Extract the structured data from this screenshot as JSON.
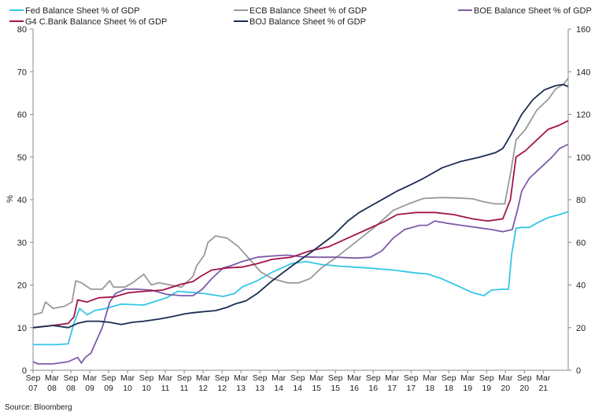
{
  "chart_data": {
    "type": "line",
    "title": "",
    "ylabel": "%",
    "xlabel": "",
    "source": "Source: Bloomberg",
    "ylim": [
      0,
      80
    ],
    "y2lim": [
      0,
      160
    ],
    "yticks": [
      "0",
      "10",
      "20",
      "30",
      "40",
      "50",
      "60",
      "70",
      "80"
    ],
    "y2ticks": [
      "0",
      "20",
      "40",
      "60",
      "80",
      "100",
      "120",
      "140",
      "160"
    ],
    "xlim": [
      2007.67,
      2021.83
    ],
    "xticks": [
      {
        "month": "Sep",
        "year": "07",
        "t": 2007.67
      },
      {
        "month": "Mar",
        "year": "08",
        "t": 2008.17
      },
      {
        "month": "Sep",
        "year": "08",
        "t": 2008.67
      },
      {
        "month": "Mar",
        "year": "09",
        "t": 2009.17
      },
      {
        "month": "Sep",
        "year": "09",
        "t": 2009.67
      },
      {
        "month": "Mar",
        "year": "10",
        "t": 2010.17
      },
      {
        "month": "Sep",
        "year": "10",
        "t": 2010.67
      },
      {
        "month": "Mar",
        "year": "11",
        "t": 2011.17
      },
      {
        "month": "Sep",
        "year": "11",
        "t": 2011.67
      },
      {
        "month": "Mar",
        "year": "12",
        "t": 2012.17
      },
      {
        "month": "Sep",
        "year": "12",
        "t": 2012.67
      },
      {
        "month": "Mar",
        "year": "13",
        "t": 2013.17
      },
      {
        "month": "Sep",
        "year": "13",
        "t": 2013.67
      },
      {
        "month": "Mar",
        "year": "14",
        "t": 2014.17
      },
      {
        "month": "Sep",
        "year": "14",
        "t": 2014.67
      },
      {
        "month": "Mar",
        "year": "15",
        "t": 2015.17
      },
      {
        "month": "Sep",
        "year": "15",
        "t": 2015.67
      },
      {
        "month": "Mar",
        "year": "16",
        "t": 2016.17
      },
      {
        "month": "Sep",
        "year": "16",
        "t": 2016.67
      },
      {
        "month": "Mar",
        "year": "17",
        "t": 2017.17
      },
      {
        "month": "Sep",
        "year": "17",
        "t": 2017.67
      },
      {
        "month": "Mar",
        "year": "18",
        "t": 2018.17
      },
      {
        "month": "Sep",
        "year": "18",
        "t": 2018.67
      },
      {
        "month": "Mar",
        "year": "19",
        "t": 2019.17
      },
      {
        "month": "Sep",
        "year": "19",
        "t": 2019.67
      },
      {
        "month": "Mar",
        "year": "20",
        "t": 2020.17
      },
      {
        "month": "Sep",
        "year": "20",
        "t": 2020.67
      },
      {
        "month": "Mar",
        "year": "21",
        "t": 2021.17
      }
    ],
    "legend_position": "top",
    "series": [
      {
        "key": "fed",
        "name": "Fed Balance Sheet % of GDP",
        "color": "#33c6e6",
        "points": [
          [
            2007.67,
            6
          ],
          [
            2008.3,
            6
          ],
          [
            2008.6,
            6.2
          ],
          [
            2008.75,
            11
          ],
          [
            2008.9,
            14.5
          ],
          [
            2009.1,
            13
          ],
          [
            2009.3,
            14
          ],
          [
            2009.6,
            14.5
          ],
          [
            2010,
            15.5
          ],
          [
            2010.6,
            15.3
          ],
          [
            2011.2,
            17
          ],
          [
            2011.5,
            18.5
          ],
          [
            2011.8,
            18.3
          ],
          [
            2012.2,
            18
          ],
          [
            2012.7,
            17.3
          ],
          [
            2013,
            18
          ],
          [
            2013.2,
            19.5
          ],
          [
            2013.6,
            21
          ],
          [
            2014,
            23
          ],
          [
            2014.5,
            25
          ],
          [
            2014.9,
            25.5
          ],
          [
            2015.3,
            24.8
          ],
          [
            2015.8,
            24.4
          ],
          [
            2016.5,
            24
          ],
          [
            2017.2,
            23.5
          ],
          [
            2017.8,
            22.8
          ],
          [
            2018.1,
            22.6
          ],
          [
            2018.5,
            21.4
          ],
          [
            2018.9,
            19.8
          ],
          [
            2019.3,
            18.2
          ],
          [
            2019.6,
            17.5
          ],
          [
            2019.8,
            18.8
          ],
          [
            2020.1,
            19
          ],
          [
            2020.25,
            19
          ],
          [
            2020.33,
            27
          ],
          [
            2020.45,
            33.3
          ],
          [
            2020.6,
            33.5
          ],
          [
            2020.8,
            33.5
          ],
          [
            2021,
            34.5
          ],
          [
            2021.3,
            35.8
          ],
          [
            2021.6,
            36.5
          ],
          [
            2021.83,
            37.2
          ]
        ]
      },
      {
        "key": "ecb",
        "name": "ECB Balance Sheet % of GDP",
        "color": "#999999",
        "points": [
          [
            2007.67,
            13
          ],
          [
            2007.9,
            13.5
          ],
          [
            2008,
            16
          ],
          [
            2008.2,
            14.5
          ],
          [
            2008.5,
            15
          ],
          [
            2008.7,
            16
          ],
          [
            2008.8,
            21
          ],
          [
            2008.95,
            20.5
          ],
          [
            2009.2,
            19
          ],
          [
            2009.5,
            19
          ],
          [
            2009.7,
            21
          ],
          [
            2009.8,
            19.5
          ],
          [
            2010.1,
            19.5
          ],
          [
            2010.3,
            20.5
          ],
          [
            2010.6,
            22.5
          ],
          [
            2010.8,
            20
          ],
          [
            2011,
            20.5
          ],
          [
            2011.3,
            20
          ],
          [
            2011.6,
            19.5
          ],
          [
            2011.9,
            22
          ],
          [
            2012,
            24.5
          ],
          [
            2012.2,
            27
          ],
          [
            2012.3,
            30
          ],
          [
            2012.5,
            31.5
          ],
          [
            2012.8,
            31
          ],
          [
            2013.1,
            29
          ],
          [
            2013.4,
            26
          ],
          [
            2013.7,
            23
          ],
          [
            2014,
            21.5
          ],
          [
            2014.4,
            20.5
          ],
          [
            2014.7,
            20.5
          ],
          [
            2015,
            21.5
          ],
          [
            2015.3,
            24
          ],
          [
            2015.7,
            26.5
          ],
          [
            2016.2,
            30
          ],
          [
            2016.7,
            33.5
          ],
          [
            2017.2,
            37.5
          ],
          [
            2017.6,
            39
          ],
          [
            2018,
            40.3
          ],
          [
            2018.5,
            40.5
          ],
          [
            2018.9,
            40.4
          ],
          [
            2019.3,
            40.2
          ],
          [
            2019.6,
            39.5
          ],
          [
            2019.9,
            39
          ],
          [
            2020.15,
            39
          ],
          [
            2020.3,
            46
          ],
          [
            2020.45,
            54
          ],
          [
            2020.7,
            56.5
          ],
          [
            2021,
            61
          ],
          [
            2021.3,
            63.5
          ],
          [
            2021.5,
            66
          ],
          [
            2021.7,
            67
          ],
          [
            2021.83,
            68.5
          ]
        ]
      },
      {
        "key": "boe",
        "name": "BOE Balance Sheet % of GDP",
        "color": "#7e5ba8",
        "points": [
          [
            2007.67,
            2
          ],
          [
            2007.8,
            1.5
          ],
          [
            2008.2,
            1.5
          ],
          [
            2008.6,
            2
          ],
          [
            2008.85,
            3
          ],
          [
            2008.95,
            1.7
          ],
          [
            2009.05,
            3
          ],
          [
            2009.2,
            4
          ],
          [
            2009.5,
            10
          ],
          [
            2009.7,
            16
          ],
          [
            2009.85,
            18
          ],
          [
            2010.1,
            19
          ],
          [
            2010.4,
            19
          ],
          [
            2010.8,
            18.8
          ],
          [
            2011.2,
            17.8
          ],
          [
            2011.6,
            17.5
          ],
          [
            2011.9,
            17.5
          ],
          [
            2012.15,
            19
          ],
          [
            2012.4,
            21.5
          ],
          [
            2012.7,
            24
          ],
          [
            2012.9,
            24.5
          ],
          [
            2013.2,
            25.5
          ],
          [
            2013.6,
            26.5
          ],
          [
            2014,
            26.8
          ],
          [
            2014.4,
            27
          ],
          [
            2014.8,
            26.6
          ],
          [
            2015.2,
            26.5
          ],
          [
            2015.7,
            26.5
          ],
          [
            2016.2,
            26.3
          ],
          [
            2016.6,
            26.5
          ],
          [
            2016.9,
            28
          ],
          [
            2017.2,
            31
          ],
          [
            2017.5,
            33
          ],
          [
            2017.9,
            34
          ],
          [
            2018.1,
            34
          ],
          [
            2018.3,
            35
          ],
          [
            2018.6,
            34.5
          ],
          [
            2019,
            34
          ],
          [
            2019.4,
            33.5
          ],
          [
            2019.8,
            33
          ],
          [
            2020.1,
            32.5
          ],
          [
            2020.35,
            33
          ],
          [
            2020.5,
            38
          ],
          [
            2020.6,
            42
          ],
          [
            2020.8,
            45
          ],
          [
            2021.1,
            47.5
          ],
          [
            2021.4,
            50
          ],
          [
            2021.6,
            52
          ],
          [
            2021.83,
            53
          ]
        ]
      },
      {
        "key": "g4",
        "name": "G4 C.Bank Balance Sheet % of GDP",
        "color": "#a3134a",
        "points": [
          [
            2007.67,
            10
          ],
          [
            2008.2,
            10.5
          ],
          [
            2008.6,
            11
          ],
          [
            2008.75,
            12.5
          ],
          [
            2008.85,
            16.5
          ],
          [
            2009.1,
            16
          ],
          [
            2009.4,
            17
          ],
          [
            2009.8,
            17.2
          ],
          [
            2010.2,
            18.2
          ],
          [
            2010.6,
            18.5
          ],
          [
            2011.1,
            18.8
          ],
          [
            2011.6,
            20.2
          ],
          [
            2011.9,
            20.8
          ],
          [
            2012.1,
            22
          ],
          [
            2012.4,
            23.5
          ],
          [
            2012.8,
            24
          ],
          [
            2013.2,
            24.2
          ],
          [
            2013.6,
            25
          ],
          [
            2014,
            26
          ],
          [
            2014.5,
            26.5
          ],
          [
            2015,
            28
          ],
          [
            2015.5,
            29
          ],
          [
            2016,
            31
          ],
          [
            2016.5,
            33
          ],
          [
            2017,
            35
          ],
          [
            2017.3,
            36.5
          ],
          [
            2017.8,
            37
          ],
          [
            2018.3,
            37
          ],
          [
            2018.8,
            36.5
          ],
          [
            2019.3,
            35.5
          ],
          [
            2019.7,
            35
          ],
          [
            2020.1,
            35.5
          ],
          [
            2020.3,
            40
          ],
          [
            2020.45,
            50
          ],
          [
            2020.7,
            51.5
          ],
          [
            2021,
            54
          ],
          [
            2021.3,
            56.5
          ],
          [
            2021.6,
            57.5
          ],
          [
            2021.83,
            58.5
          ]
        ]
      },
      {
        "key": "boj",
        "name": "BOJ Balance Sheet % of GDP",
        "color": "#1a2b52",
        "points": [
          [
            2007.67,
            20
          ],
          [
            2008.2,
            21
          ],
          [
            2008.6,
            20
          ],
          [
            2008.85,
            22
          ],
          [
            2009.1,
            23
          ],
          [
            2009.4,
            23
          ],
          [
            2009.7,
            22.5
          ],
          [
            2010,
            21.5
          ],
          [
            2010.3,
            22.5
          ],
          [
            2010.6,
            23
          ],
          [
            2011,
            24
          ],
          [
            2011.3,
            25
          ],
          [
            2011.7,
            26.5
          ],
          [
            2011.9,
            27
          ],
          [
            2012.2,
            27.5
          ],
          [
            2012.5,
            28
          ],
          [
            2012.8,
            29.5
          ],
          [
            2013,
            31
          ],
          [
            2013.3,
            32.5
          ],
          [
            2013.6,
            36
          ],
          [
            2014,
            42
          ],
          [
            2014.3,
            46
          ],
          [
            2014.6,
            50
          ],
          [
            2015,
            55
          ],
          [
            2015.3,
            59
          ],
          [
            2015.6,
            63
          ],
          [
            2016,
            70
          ],
          [
            2016.3,
            74
          ],
          [
            2016.6,
            77
          ],
          [
            2017,
            81
          ],
          [
            2017.3,
            84
          ],
          [
            2017.6,
            86.5
          ],
          [
            2018,
            90
          ],
          [
            2018.5,
            95
          ],
          [
            2019,
            98
          ],
          [
            2019.5,
            100
          ],
          [
            2019.9,
            102
          ],
          [
            2020.1,
            104
          ],
          [
            2020.3,
            110
          ],
          [
            2020.6,
            120
          ],
          [
            2020.9,
            127
          ],
          [
            2021.2,
            131.5
          ],
          [
            2021.5,
            133.5
          ],
          [
            2021.7,
            134
          ],
          [
            2021.83,
            133
          ]
        ]
      }
    ],
    "series_axis": {
      "fed": "left",
      "ecb": "left",
      "boe": "left",
      "g4": "left",
      "boj": "right"
    }
  }
}
